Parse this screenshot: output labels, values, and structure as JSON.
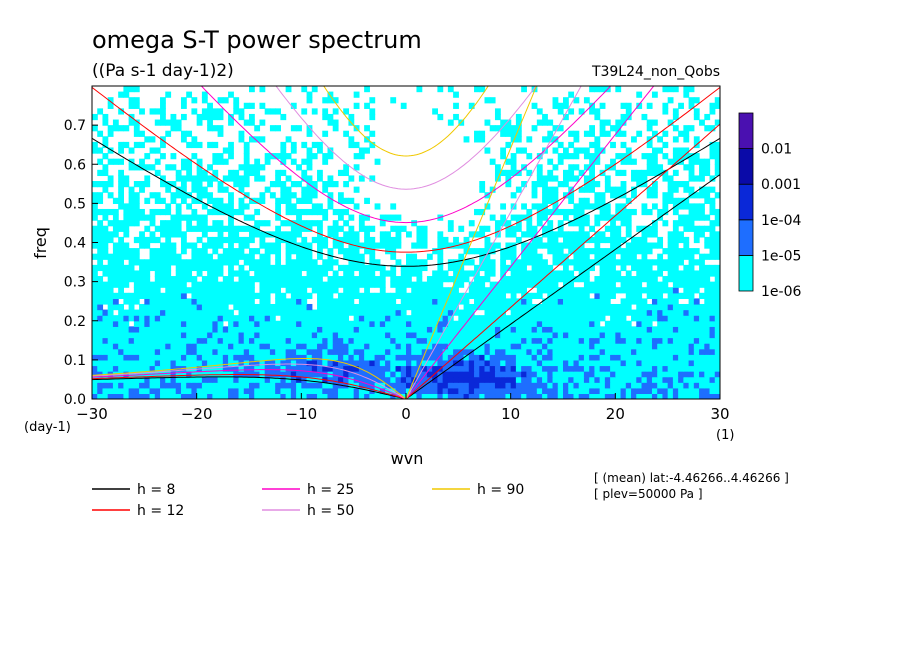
{
  "chart_data": {
    "type": "heatmap",
    "title": "omega S-T power spectrum",
    "subtitle": "((Pa s-1 day-1)2)",
    "experiment": "T39L24_non_Qobs",
    "xlabel": "wvn",
    "ylabel": "freq",
    "x_unit": "(1)",
    "y_unit": "(day-1)",
    "xlim": [
      -30,
      30
    ],
    "ylim": [
      0,
      0.8
    ],
    "x_ticks": [
      -30,
      -20,
      -10,
      0,
      10,
      20,
      30
    ],
    "y_ticks": [
      0.0,
      0.1,
      0.2,
      0.3,
      0.4,
      0.5,
      0.6,
      0.7
    ],
    "x_tick_labels": [
      "-30",
      "-20",
      "-10",
      "0",
      "10",
      "20",
      "30"
    ],
    "y_tick_labels": [
      "0.0",
      "0.1",
      "0.2",
      "0.3",
      "0.4",
      "0.5",
      "0.6",
      "0.7"
    ],
    "colorbar": {
      "levels": [
        "1e-06",
        "1e-05",
        "1e-04",
        "0.001",
        "0.01"
      ],
      "colors": [
        "#00ffff",
        "#1e6eff",
        "#0a28d8",
        "#0a0aa8",
        "#4a10b0"
      ]
    },
    "dispersion_curves": [
      {
        "name": "h =  8",
        "h": 8,
        "color": "#000000"
      },
      {
        "name": "h = 12",
        "h": 12,
        "color": "#ff0000"
      },
      {
        "name": "h = 25",
        "h": 25,
        "color": "#ff00c8"
      },
      {
        "name": "h = 50",
        "h": 50,
        "color": "#e08ee0"
      },
      {
        "name": "h = 90",
        "h": 90,
        "color": "#f0c800"
      }
    ],
    "annotations": [
      "[ (mean) lat:-4.46266..4.46266 ]",
      "[ plev=50000 Pa ]"
    ]
  }
}
